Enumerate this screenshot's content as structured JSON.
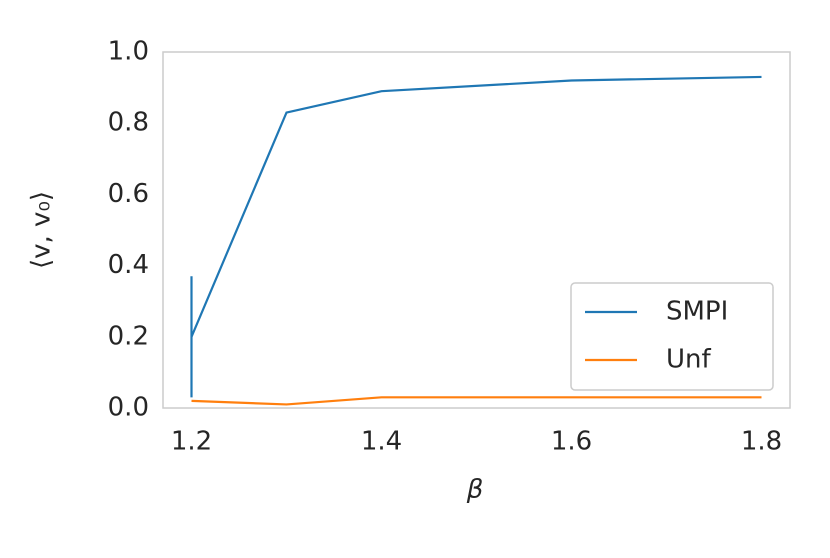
{
  "chart_data": {
    "type": "line",
    "x_label": "β",
    "y_label": "⟨v, v₀⟩",
    "x": [
      1.2,
      1.3,
      1.4,
      1.6,
      1.8
    ],
    "series": [
      {
        "name": "SMPI",
        "color": "#1f77b4",
        "values": [
          0.2,
          0.83,
          0.89,
          0.92,
          0.93
        ],
        "errors": [
          0.17,
          0,
          0,
          0,
          0
        ]
      },
      {
        "name": "Unf",
        "color": "#ff7f0e",
        "values": [
          0.02,
          0.01,
          0.03,
          0.03,
          0.03
        ]
      }
    ],
    "xlim": [
      1.17,
      1.83
    ],
    "xticks": [
      1.2,
      1.4,
      1.6,
      1.8
    ],
    "ylim": [
      0,
      1
    ],
    "yticks": [
      {
        "value": 0,
        "label": "0.0"
      },
      0.2,
      0.4,
      0.6,
      0.8,
      {
        "value": 1,
        "label": "1.0"
      }
    ],
    "grid": false,
    "legend": "lower right"
  }
}
